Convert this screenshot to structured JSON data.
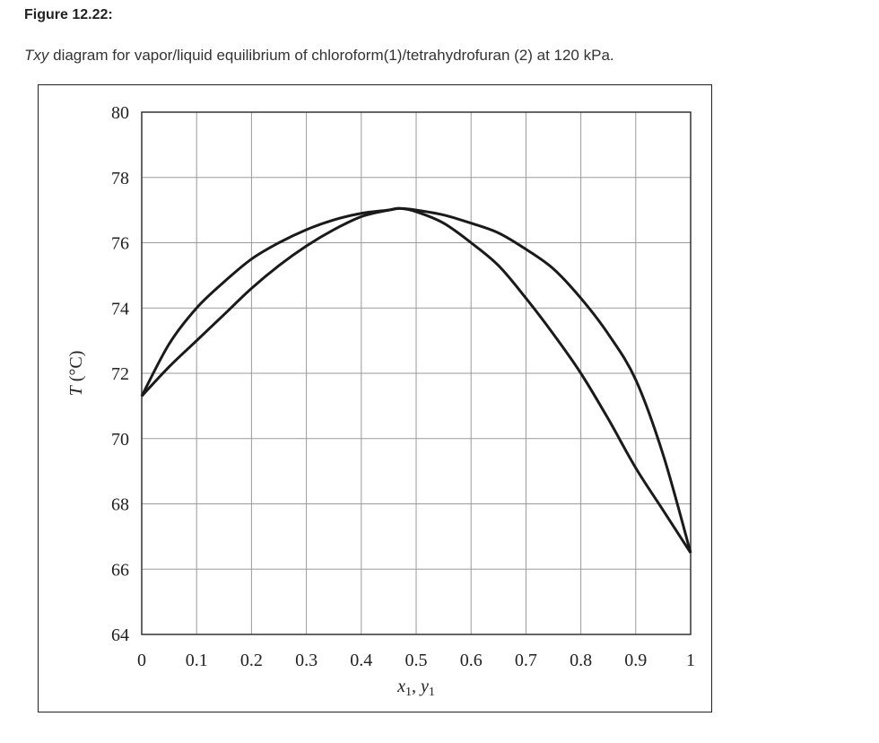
{
  "figure_label": "Figure 12.22:",
  "caption": {
    "italic": "Txy",
    "rest": " diagram for vapor/liquid equilibrium of chloroform(1)/tetrahydrofuran (2) at 120 kPa."
  },
  "chart_data": {
    "type": "line",
    "title": "",
    "xlabel_parts": {
      "main_x": "x",
      "sub_x": "1",
      "comma": ", ",
      "main_y": "y",
      "sub_y": "1"
    },
    "ylabel_parts": {
      "italic": "T",
      "rest": " (°C)"
    },
    "xlim": [
      0,
      1
    ],
    "ylim": [
      64,
      80
    ],
    "xticks": [
      "0",
      "0.1",
      "0.2",
      "0.3",
      "0.4",
      "0.5",
      "0.6",
      "0.7",
      "0.8",
      "0.9",
      "1"
    ],
    "yticks": [
      "64",
      "66",
      "68",
      "70",
      "72",
      "74",
      "76",
      "78",
      "80"
    ],
    "grid": true,
    "line_color": "#1a1a1a",
    "series": [
      {
        "x": [
          0,
          0.05,
          0.1,
          0.15,
          0.2,
          0.25,
          0.3,
          0.35,
          0.4,
          0.45,
          0.47,
          0.5,
          0.55,
          0.6,
          0.65,
          0.7,
          0.75,
          0.8,
          0.85,
          0.9,
          0.95,
          1.0
        ],
        "y": [
          71.3,
          72.9,
          74.0,
          74.8,
          75.5,
          76.0,
          76.4,
          76.7,
          76.9,
          77.0,
          77.05,
          77.0,
          76.85,
          76.6,
          76.3,
          75.8,
          75.2,
          74.3,
          73.2,
          71.8,
          69.5,
          66.5
        ]
      },
      {
        "x": [
          0,
          0.05,
          0.1,
          0.15,
          0.2,
          0.25,
          0.3,
          0.35,
          0.4,
          0.45,
          0.47,
          0.5,
          0.55,
          0.6,
          0.65,
          0.7,
          0.75,
          0.8,
          0.85,
          0.9,
          0.95,
          1.0
        ],
        "y": [
          71.3,
          72.2,
          73.0,
          73.8,
          74.6,
          75.3,
          75.9,
          76.4,
          76.8,
          77.0,
          77.05,
          76.95,
          76.6,
          76.0,
          75.3,
          74.3,
          73.2,
          72.0,
          70.6,
          69.1,
          67.8,
          66.5
        ]
      }
    ]
  }
}
